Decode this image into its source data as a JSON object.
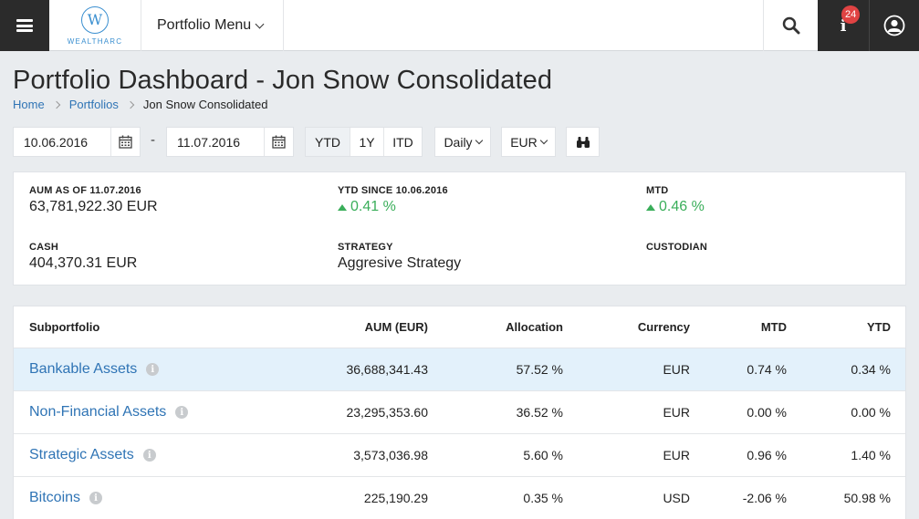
{
  "header": {
    "brand": "WEALTHARC",
    "logo_letter": "W",
    "menu_label": "Portfolio Menu",
    "notifications_count": "24",
    "info_glyph": "i"
  },
  "page": {
    "title": "Portfolio Dashboard - Jon Snow Consolidated",
    "breadcrumb": [
      "Home",
      "Portfolios",
      "Jon Snow Consolidated"
    ]
  },
  "filters": {
    "date_from": "10.06.2016",
    "date_separator": "-",
    "date_to": "11.07.2016",
    "periods": [
      "YTD",
      "1Y",
      "ITD"
    ],
    "active_period": "YTD",
    "frequency": "Daily",
    "currency": "EUR"
  },
  "summary": {
    "aum_label": "AUM AS OF 11.07.2016",
    "aum_value": "63,781,922.30 EUR",
    "ytd_label": "YTD SINCE 10.06.2016",
    "ytd_value": "0.41 %",
    "mtd_label": "MTD",
    "mtd_value": "0.46 %",
    "cash_label": "CASH",
    "cash_value": "404,370.31 EUR",
    "strategy_label": "STRATEGY",
    "strategy_value": "Aggresive Strategy",
    "custodian_label": "CUSTODIAN",
    "positive_color": "#3aae5a"
  },
  "table": {
    "headers": [
      "Subportfolio",
      "AUM (EUR)",
      "Allocation",
      "Currency",
      "MTD",
      "YTD"
    ],
    "rows": [
      {
        "name": "Bankable Assets",
        "aum": "36,688,341.43",
        "allocation": "57.52 %",
        "currency": "EUR",
        "mtd": "0.74 %",
        "ytd": "0.34 %"
      },
      {
        "name": "Non-Financial Assets",
        "aum": "23,295,353.60",
        "allocation": "36.52 %",
        "currency": "EUR",
        "mtd": "0.00 %",
        "ytd": "0.00 %"
      },
      {
        "name": "Strategic Assets",
        "aum": "3,573,036.98",
        "allocation": "5.60 %",
        "currency": "EUR",
        "mtd": "0.96 %",
        "ytd": "1.40 %"
      },
      {
        "name": "Bitcoins",
        "aum": "225,190.29",
        "allocation": "0.35 %",
        "currency": "USD",
        "mtd": "-2.06 %",
        "ytd": "50.98 %"
      }
    ]
  }
}
